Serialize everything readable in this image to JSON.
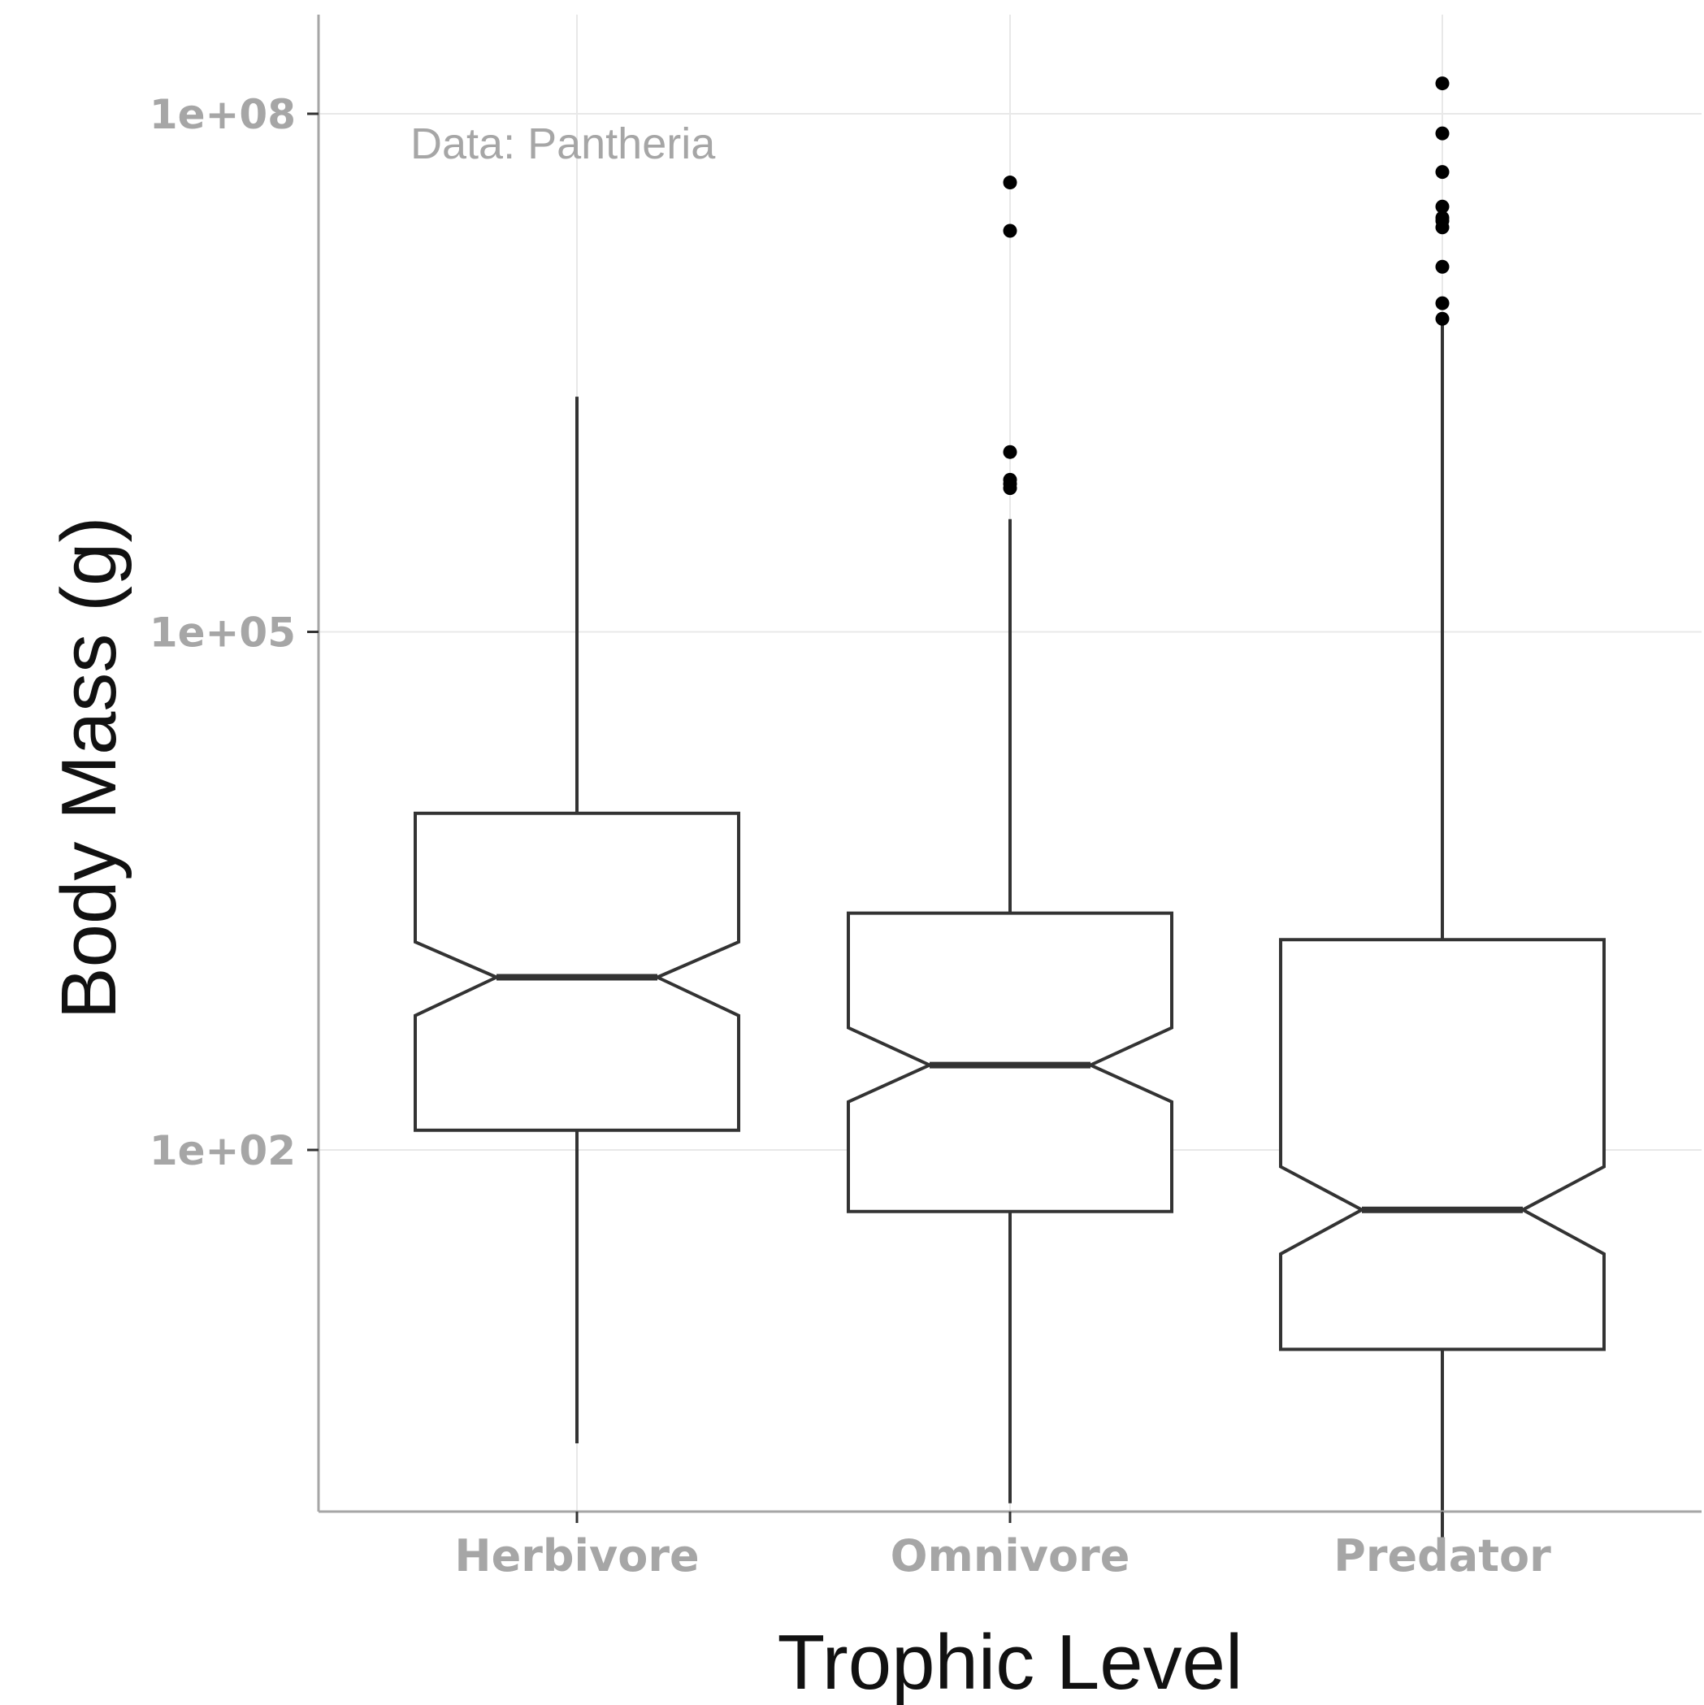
{
  "chart_data": {
    "type": "box",
    "notched": true,
    "xlabel": "Trophic Level",
    "ylabel": "Body Mass (g)",
    "yscale": "log10",
    "ylim": [
      0.06,
      140000000.0
    ],
    "y_ticks": [
      {
        "value": 100,
        "label": "1e+02"
      },
      {
        "value": 100000,
        "label": "1e+05"
      },
      {
        "value": 100000000,
        "label": "1e+08"
      }
    ],
    "grid": true,
    "annotation": "Data: Pantheria",
    "categories": [
      "Herbivore",
      "Omnivore",
      "Predator"
    ],
    "boxes": [
      {
        "category": "Herbivore",
        "whisker_low": 2.0,
        "q1": 130,
        "notch_low": 600,
        "median": 1000,
        "notch_high": 1600,
        "q3": 8900,
        "whisker_high": 2300000,
        "outliers": []
      },
      {
        "category": "Omnivore",
        "whisker_low": 0.9,
        "q1": 44,
        "notch_low": 190,
        "median": 310,
        "notch_high": 510,
        "q3": 2350,
        "whisker_high": 450000,
        "outliers": [
          40000000,
          21000000,
          1100000,
          760000,
          720000,
          680000
        ]
      },
      {
        "category": "Predator",
        "whisker_low": 0.5,
        "q1": 7,
        "notch_low": 25,
        "median": 45,
        "notch_high": 80,
        "q3": 1650,
        "whisker_high": 6100000,
        "outliers": [
          150000000,
          77000000,
          46000000,
          29000000,
          25000000,
          24000000,
          22000000,
          13000000,
          8000000,
          6500000
        ]
      }
    ]
  }
}
